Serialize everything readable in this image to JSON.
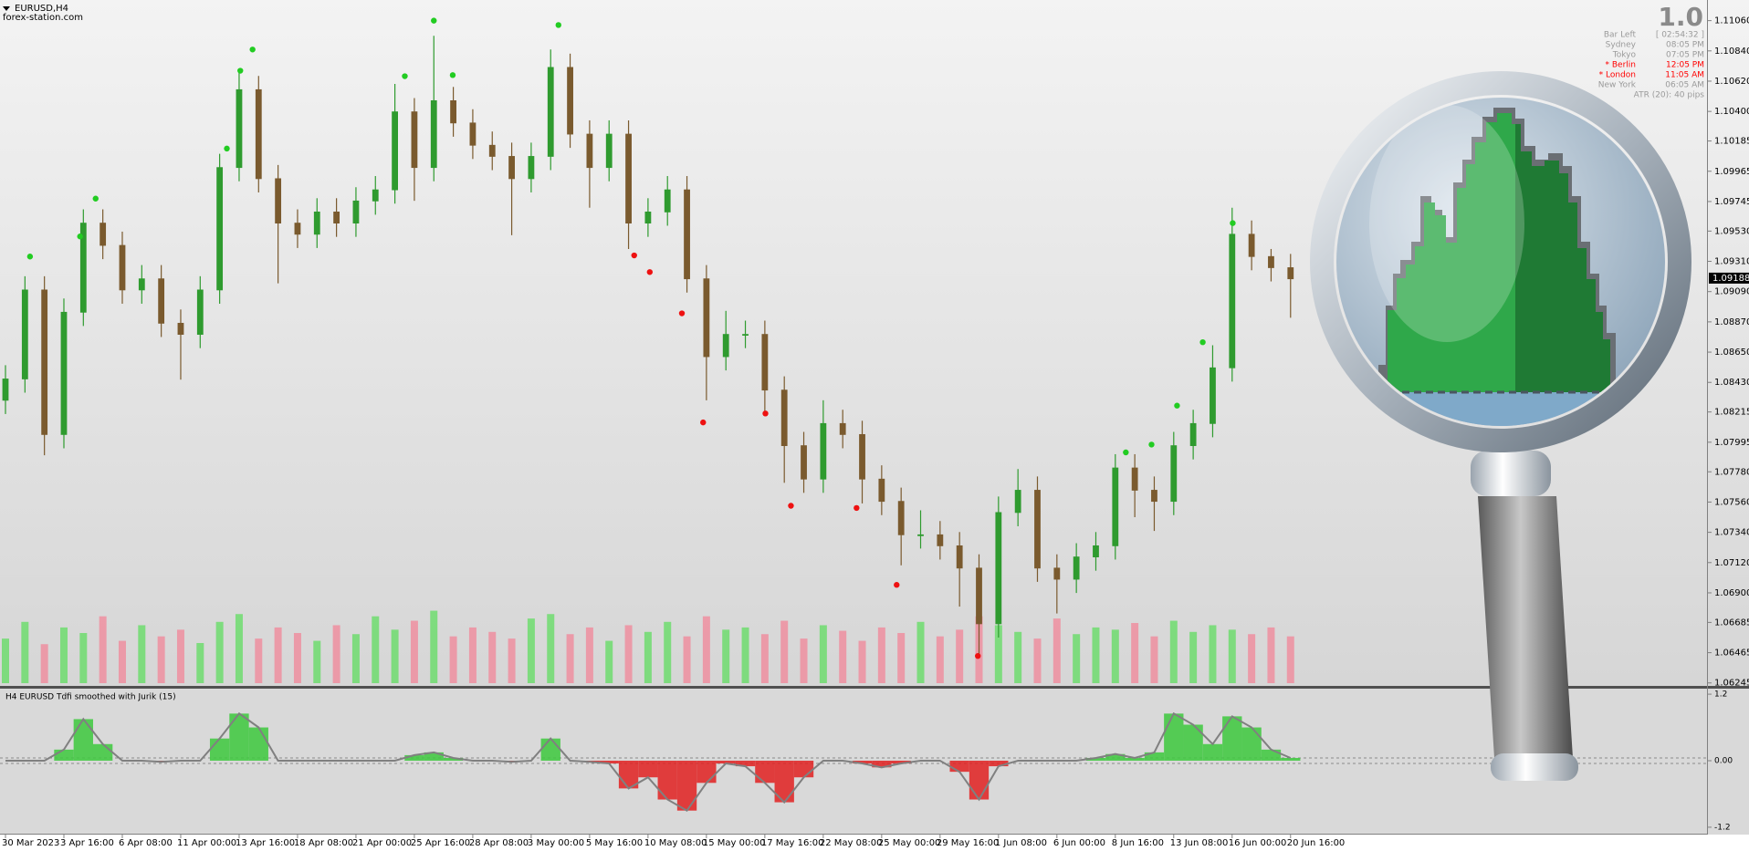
{
  "header": {
    "symbol": "EURUSD,H4",
    "site": "forex-station.com"
  },
  "info_panel": {
    "title": "1.0",
    "rows": [
      {
        "label": "Bar Left",
        "value": "[ 02:54:32 ]",
        "color": "#9a9a9a"
      },
      {
        "label": "Sydney",
        "value": "08:05 PM",
        "color": "#9a9a9a"
      },
      {
        "label": "Tokyo",
        "value": "07:05 PM",
        "color": "#9a9a9a"
      },
      {
        "label": "* Berlin",
        "value": "12:05 PM",
        "color": "#ff0000"
      },
      {
        "label": "* London",
        "value": "11:05 AM",
        "color": "#ff0000"
      },
      {
        "label": "New York",
        "value": "06:05 AM",
        "color": "#9a9a9a"
      }
    ],
    "footer": "ATR (20): 40 pips"
  },
  "chart_data": [
    {
      "type": "candlestick",
      "categories": [
        "30 Mar 2023",
        null,
        null,
        "3 Apr 16:00",
        null,
        null,
        "6 Apr 08:00",
        null,
        null,
        "11 Apr 00:00",
        null,
        null,
        "13 Apr 16:00",
        null,
        null,
        "18 Apr 08:00",
        null,
        null,
        "21 Apr 00:00",
        null,
        null,
        "25 Apr 16:00",
        null,
        null,
        "28 Apr 08:00",
        null,
        null,
        "3 May 00:00",
        null,
        null,
        "5 May 16:00",
        null,
        null,
        "10 May 08:00",
        null,
        null,
        "15 May 00:00",
        null,
        null,
        "17 May 16:00",
        null,
        null,
        "22 May 08:00",
        null,
        null,
        "25 May 00:00",
        null,
        null,
        "29 May 16:00",
        null,
        null,
        "1 Jun 08:00",
        null,
        null,
        "6 Jun 00:00",
        null,
        null,
        "8 Jun 16:00",
        null,
        null,
        "13 Jun 08:00",
        null,
        null,
        "16 Jun 00:00",
        null,
        null,
        "20 Jun 16:00"
      ],
      "open": [
        1.083,
        1.08455,
        1.09102,
        1.08051,
        1.0894,
        1.09588,
        1.09426,
        1.09102,
        1.09183,
        1.0886,
        1.08779,
        1.09102,
        1.09992,
        1.10558,
        1.09911,
        1.09588,
        1.09507,
        1.09669,
        1.09588,
        1.09749,
        1.0983,
        1.10397,
        1.09992,
        1.10478,
        1.10316,
        1.10154,
        1.10073,
        1.09911,
        1.10073,
        1.1072,
        1.10235,
        1.09992,
        1.10235,
        1.09588,
        1.09669,
        1.0983,
        1.09183,
        1.08617,
        1.08779,
        1.08779,
        1.08374,
        1.0797,
        1.07727,
        1.08131,
        1.08051,
        1.07727,
        1.07565,
        1.07322,
        1.07322,
        1.07242,
        1.0708,
        1.06675,
        1.07484,
        1.07646,
        1.0708,
        1.06999,
        1.07161,
        1.07242,
        1.07808,
        1.07646,
        1.07565,
        1.0797,
        1.08131,
        1.08536,
        1.09507,
        1.09345,
        1.09264
      ],
      "high": [
        1.08555,
        1.09202,
        1.09202,
        1.0904,
        1.09688,
        1.09688,
        1.09526,
        1.09283,
        1.09283,
        1.0896,
        1.09202,
        1.10092,
        1.107,
        1.10658,
        1.10011,
        1.09688,
        1.09769,
        1.09769,
        1.09849,
        1.0993,
        1.106,
        1.10497,
        1.1095,
        1.10578,
        1.10416,
        1.10254,
        1.10173,
        1.10173,
        1.1085,
        1.1082,
        1.10335,
        1.10335,
        1.10335,
        1.09769,
        1.0993,
        1.0993,
        1.09283,
        1.0895,
        1.08879,
        1.08879,
        1.08474,
        1.0807,
        1.083,
        1.08231,
        1.08151,
        1.07827,
        1.07665,
        1.075,
        1.07422,
        1.07342,
        1.0718,
        1.076,
        1.078,
        1.07746,
        1.0718,
        1.07261,
        1.07342,
        1.07908,
        1.07908,
        1.07746,
        1.0807,
        1.08231,
        1.087,
        1.097,
        1.09607,
        1.094,
        1.09364
      ],
      "low": [
        1.082,
        1.08355,
        1.079,
        1.07951,
        1.0884,
        1.09326,
        1.09002,
        1.09002,
        1.0876,
        1.0845,
        1.08679,
        1.09002,
        1.09892,
        1.09811,
        1.0915,
        1.09407,
        1.09407,
        1.09488,
        1.09488,
        1.09649,
        1.0973,
        1.0975,
        1.09892,
        1.10216,
        1.10054,
        1.09973,
        1.095,
        1.09811,
        1.09973,
        1.10135,
        1.097,
        1.09892,
        1.094,
        1.09488,
        1.09569,
        1.09083,
        1.083,
        1.08517,
        1.08679,
        1.082,
        1.077,
        1.07627,
        1.07627,
        1.07951,
        1.0755,
        1.07465,
        1.071,
        1.07222,
        1.07142,
        1.068,
        1.0645,
        1.06575,
        1.07384,
        1.0698,
        1.0675,
        1.06899,
        1.07061,
        1.07142,
        1.0745,
        1.0735,
        1.07465,
        1.0787,
        1.08031,
        1.08436,
        1.09245,
        1.09164,
        1.089
      ],
      "close": [
        1.08455,
        1.09102,
        1.08051,
        1.0894,
        1.09588,
        1.09426,
        1.09102,
        1.09183,
        1.0886,
        1.08779,
        1.09102,
        1.09992,
        1.10558,
        1.09911,
        1.09588,
        1.09507,
        1.09669,
        1.09588,
        1.09749,
        1.0983,
        1.10397,
        1.09992,
        1.10478,
        1.10316,
        1.10154,
        1.10073,
        1.09911,
        1.10073,
        1.1072,
        1.10235,
        1.09992,
        1.10235,
        1.09588,
        1.09669,
        1.0983,
        1.09183,
        1.08617,
        1.08779,
        1.08779,
        1.08374,
        1.0797,
        1.07727,
        1.08131,
        1.08051,
        1.07727,
        1.07565,
        1.07322,
        1.07322,
        1.07242,
        1.0708,
        1.06675,
        1.07484,
        1.07646,
        1.0708,
        1.06999,
        1.07161,
        1.07242,
        1.07808,
        1.07646,
        1.07565,
        1.0797,
        1.08131,
        1.08536,
        1.09507,
        1.09345,
        1.09264,
        1.09183
      ],
      "bull_color": "#2f9b2f",
      "bear_color": "#7a5a2e",
      "volume": [
        40,
        55,
        35,
        50,
        45,
        60,
        38,
        52,
        42,
        48,
        36,
        55,
        62,
        40,
        50,
        45,
        38,
        52,
        44,
        60,
        48,
        56,
        65,
        42,
        50,
        46,
        40,
        58,
        62,
        44,
        50,
        38,
        52,
        46,
        55,
        42,
        60,
        48,
        50,
        44,
        56,
        40,
        52,
        47,
        38,
        50,
        45,
        55,
        42,
        48,
        60,
        52,
        46,
        40,
        58,
        44,
        50,
        48,
        54,
        42,
        56,
        46,
        52,
        48,
        44,
        50,
        42
      ],
      "volume_up_color": "#6fdc6f",
      "volume_down_color": "#ef8fa0",
      "buy_signals": {
        "color": "#22cc22",
        "x": [
          1.26,
          3.83,
          4.63,
          11.37,
          12.06,
          12.69,
          20.51,
          22,
          22.97,
          28.4,
          57.54,
          58.86,
          60.17,
          61.49,
          63.03
        ],
        "values": [
          1.09345,
          1.09491,
          1.09766,
          1.1013,
          1.10696,
          1.1085,
          1.10656,
          1.1106,
          1.10664,
          1.11028,
          1.07921,
          1.07978,
          1.08261,
          1.08722,
          1.09588
        ]
      },
      "sell_signals": {
        "color": "#ee1111",
        "x": [
          32.29,
          33.09,
          34.74,
          35.83,
          39.03,
          40.34,
          43.71,
          45.77,
          49.94
        ],
        "values": [
          1.09353,
          1.09232,
          1.08932,
          1.08139,
          1.08204,
          1.07533,
          1.07517,
          1.06958,
          1.06441
        ]
      },
      "last_price": 1.09188,
      "ylim": [
        1.0623,
        1.1121
      ],
      "yticks": [
        {
          "value": 1.1106,
          "label": "1.11060"
        },
        {
          "value": 1.1084,
          "label": "1.10840"
        },
        {
          "value": 1.1062,
          "label": "1.10620"
        },
        {
          "value": 1.104,
          "label": "1.10400"
        },
        1.10185,
        1.09965,
        1.09745,
        {
          "value": 1.0953,
          "label": "1.09530"
        },
        {
          "value": 1.0931,
          "label": "1.09310"
        },
        {
          "value": 1.0909,
          "label": "1.09090"
        },
        {
          "value": 1.0887,
          "label": "1.08870"
        },
        {
          "value": 1.0865,
          "label": "1.08650"
        },
        {
          "value": 1.0843,
          "label": "1.08430"
        },
        1.08215,
        1.07995,
        {
          "value": 1.0778,
          "label": "1.07780"
        },
        {
          "value": 1.0756,
          "label": "1.07560"
        },
        {
          "value": 1.0734,
          "label": "1.07340"
        },
        {
          "value": 1.0712,
          "label": "1.07120"
        },
        {
          "value": 1.069,
          "label": "1.06900"
        },
        1.06685,
        1.06465,
        1.06245
      ]
    },
    {
      "type": "histogram",
      "title": "H4 EURUSD Tdfi smoothed with Jurik (15)",
      "values": [
        0,
        0,
        0,
        0.2,
        0.75,
        0.3,
        0,
        0,
        -0.02,
        0,
        0,
        0.4,
        0.85,
        0.6,
        0,
        0,
        0,
        0,
        0,
        0,
        0,
        0.1,
        0.15,
        0.05,
        0,
        0,
        -0.02,
        0,
        0.4,
        0,
        -0.02,
        -0.05,
        -0.5,
        -0.3,
        -0.7,
        -0.9,
        -0.4,
        -0.05,
        -0.1,
        -0.4,
        -0.75,
        -0.3,
        0,
        0,
        -0.05,
        -0.12,
        -0.05,
        0,
        0,
        -0.2,
        -0.7,
        -0.1,
        0,
        0,
        0,
        0,
        0.05,
        0.12,
        0.05,
        0.15,
        0.85,
        0.65,
        0.3,
        0.8,
        0.6,
        0.2,
        0.05
      ],
      "positive_color": "#3cc83c",
      "negative_color": "#e02020",
      "line_color": "#808080",
      "levels": [
        0.05,
        -0.05
      ],
      "ylim": [
        -1.3,
        1.3
      ],
      "yticks": [
        1.2,
        {
          "value": 0,
          "label": "0.00"
        },
        -1.2
      ]
    }
  ]
}
